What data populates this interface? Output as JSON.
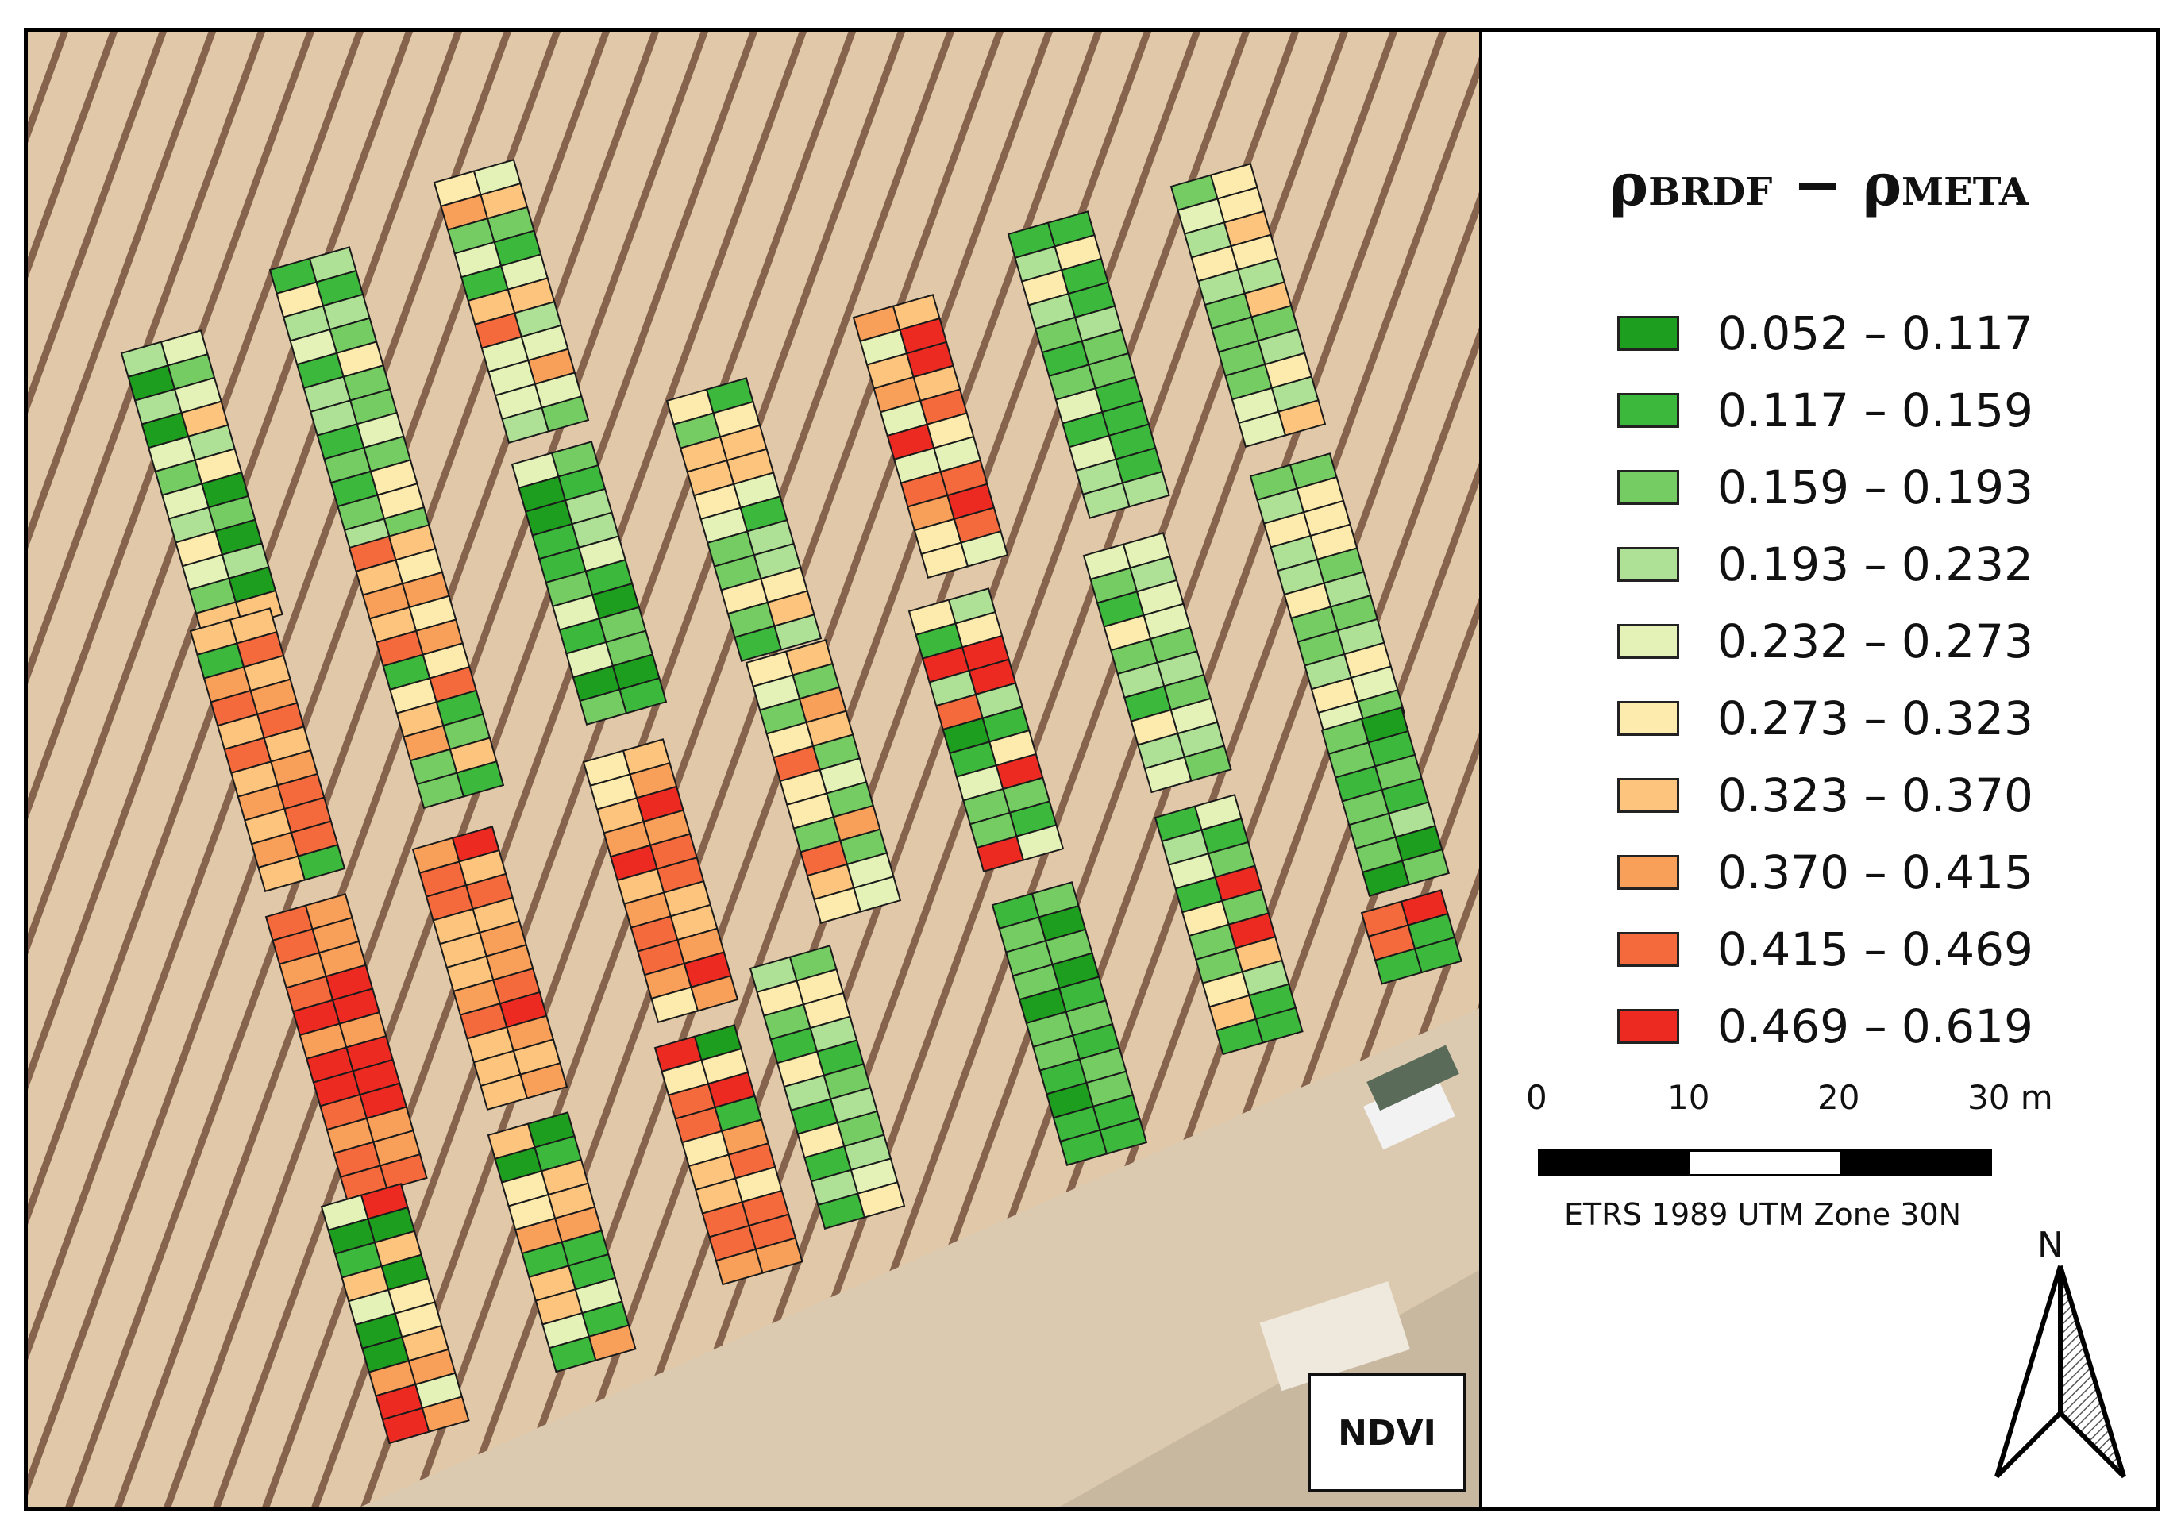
{
  "legend": {
    "title_main": "ρ",
    "title_sub1": "BRDF",
    "title_minus": " − ",
    "title_main2": "ρ",
    "title_sub2": "META",
    "classes": [
      {
        "label": "0.052 – 0.117",
        "color": "#1e9e1e"
      },
      {
        "label": "0.117 – 0.159",
        "color": "#3cb83c"
      },
      {
        "label": "0.159 – 0.193",
        "color": "#74cc62"
      },
      {
        "label": "0.193 – 0.232",
        "color": "#aee095"
      },
      {
        "label": "0.232 – 0.273",
        "color": "#e4f2b8"
      },
      {
        "label": "0.273 – 0.323",
        "color": "#fcebac"
      },
      {
        "label": "0.323 – 0.370",
        "color": "#fcc47c"
      },
      {
        "label": "0.370 – 0.415",
        "color": "#f8a05a"
      },
      {
        "label": "0.415 – 0.469",
        "color": "#f46a3c"
      },
      {
        "label": "0.469 – 0.619",
        "color": "#ec2a22"
      }
    ]
  },
  "scalebar": {
    "ticks": [
      "0",
      "10",
      "20",
      "30 m"
    ],
    "crs": "ETRS 1989 UTM Zone 30N"
  },
  "north": "N",
  "panel_label": "NDVI",
  "colors": {
    "soil": "#e0c8a8",
    "vine_row": "#6e4a34"
  }
}
